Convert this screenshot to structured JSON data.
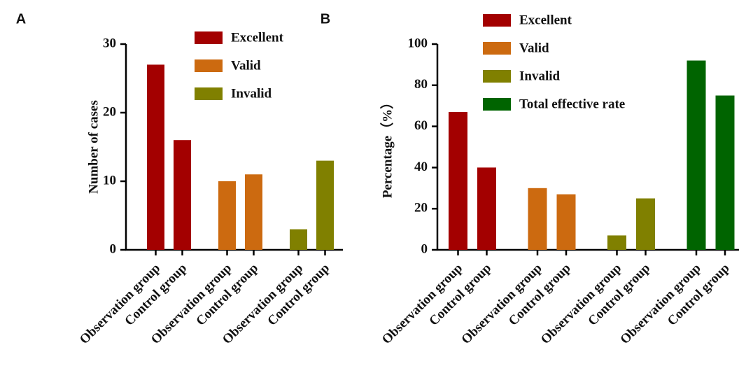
{
  "chart_data": [
    {
      "type": "bar",
      "panel": "A",
      "ylabel": "Number of cases",
      "categories": [
        "Observation group",
        "Control group",
        "Observation group",
        "Control group",
        "Observation group",
        "Control group"
      ],
      "series": [
        {
          "name": "Excellent",
          "color": "#a30000",
          "values": [
            27,
            16,
            null,
            null,
            null,
            null
          ]
        },
        {
          "name": "Valid",
          "color": "#cc6a10",
          "values": [
            null,
            null,
            10,
            11,
            null,
            null
          ]
        },
        {
          "name": "Invalid",
          "color": "#808000",
          "values": [
            null,
            null,
            null,
            null,
            3,
            13
          ]
        }
      ],
      "ylim": [
        0,
        30
      ],
      "yticks": [
        0,
        10,
        20,
        30
      ]
    },
    {
      "type": "bar",
      "panel": "B",
      "ylabel": "Percentage（%）",
      "categories": [
        "Observation group",
        "Control group",
        "Observation group",
        "Control group",
        "Observation group",
        "Control group",
        "Observation group",
        "Control group"
      ],
      "series": [
        {
          "name": "Excellent",
          "color": "#a30000",
          "values": [
            67,
            40,
            null,
            null,
            null,
            null,
            null,
            null
          ]
        },
        {
          "name": "Valid",
          "color": "#cc6a10",
          "values": [
            null,
            null,
            30,
            27,
            null,
            null,
            null,
            null
          ]
        },
        {
          "name": "Invalid",
          "color": "#808000",
          "values": [
            null,
            null,
            null,
            null,
            7,
            25,
            null,
            null
          ]
        },
        {
          "name": "Total effective rate",
          "color": "#006400",
          "values": [
            null,
            null,
            null,
            null,
            null,
            null,
            92,
            75
          ]
        }
      ],
      "ylim": [
        0,
        100
      ],
      "yticks": [
        0,
        20,
        40,
        60,
        80,
        100
      ]
    }
  ]
}
